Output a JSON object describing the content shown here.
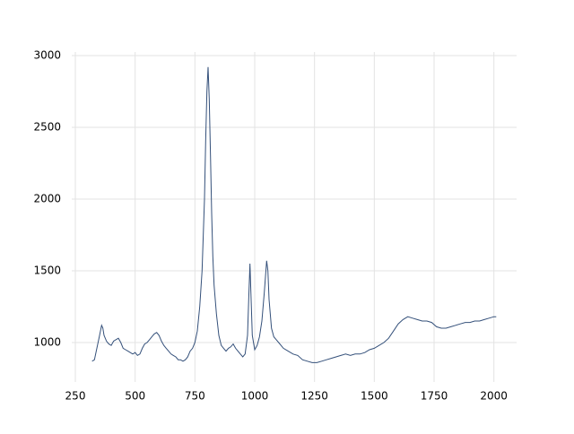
{
  "chart_data": {
    "type": "line",
    "x": [
      320,
      330,
      340,
      350,
      355,
      360,
      365,
      370,
      380,
      390,
      400,
      410,
      420,
      430,
      440,
      450,
      460,
      470,
      480,
      490,
      500,
      510,
      520,
      530,
      540,
      550,
      560,
      570,
      580,
      590,
      600,
      610,
      620,
      630,
      640,
      650,
      660,
      670,
      680,
      690,
      700,
      710,
      720,
      730,
      740,
      750,
      760,
      770,
      780,
      790,
      795,
      800,
      805,
      810,
      815,
      820,
      825,
      830,
      840,
      850,
      860,
      870,
      880,
      890,
      900,
      910,
      920,
      930,
      940,
      950,
      960,
      970,
      975,
      980,
      985,
      990,
      1000,
      1010,
      1020,
      1030,
      1040,
      1050,
      1055,
      1060,
      1070,
      1080,
      1090,
      1100,
      1120,
      1140,
      1160,
      1180,
      1200,
      1220,
      1240,
      1260,
      1280,
      1300,
      1320,
      1340,
      1360,
      1380,
      1400,
      1420,
      1440,
      1460,
      1480,
      1500,
      1520,
      1540,
      1560,
      1580,
      1600,
      1620,
      1640,
      1660,
      1680,
      1700,
      1720,
      1740,
      1760,
      1780,
      1800,
      1820,
      1840,
      1860,
      1880,
      1900,
      1920,
      1940,
      1960,
      1980,
      2000,
      2010
    ],
    "values": [
      870,
      880,
      960,
      1040,
      1080,
      1120,
      1100,
      1050,
      1010,
      990,
      980,
      1010,
      1020,
      1030,
      1000,
      960,
      950,
      940,
      930,
      920,
      930,
      910,
      920,
      960,
      990,
      1000,
      1020,
      1040,
      1060,
      1070,
      1050,
      1010,
      980,
      960,
      940,
      920,
      910,
      900,
      880,
      880,
      870,
      880,
      900,
      940,
      960,
      1000,
      1080,
      1250,
      1500,
      2000,
      2400,
      2750,
      2920,
      2700,
      2300,
      1900,
      1600,
      1400,
      1200,
      1050,
      980,
      960,
      940,
      960,
      970,
      990,
      960,
      940,
      920,
      900,
      920,
      1050,
      1300,
      1550,
      1300,
      1050,
      950,
      980,
      1040,
      1150,
      1350,
      1570,
      1500,
      1300,
      1100,
      1040,
      1020,
      1000,
      960,
      940,
      920,
      910,
      880,
      870,
      860,
      860,
      870,
      880,
      890,
      900,
      910,
      920,
      910,
      920,
      920,
      930,
      950,
      960,
      980,
      1000,
      1030,
      1080,
      1130,
      1160,
      1180,
      1170,
      1160,
      1150,
      1150,
      1140,
      1110,
      1100,
      1100,
      1110,
      1120,
      1130,
      1140,
      1140,
      1150,
      1150,
      1160,
      1170,
      1180,
      1180
    ],
    "color": "#34507a",
    "xlim": [
      235,
      2095
    ],
    "ylim": [
      725,
      3025
    ],
    "xticks": [
      250,
      500,
      750,
      1000,
      1250,
      1500,
      1750,
      2000
    ],
    "yticks": [
      1000,
      1500,
      2000,
      2500,
      3000
    ],
    "grid": true
  }
}
